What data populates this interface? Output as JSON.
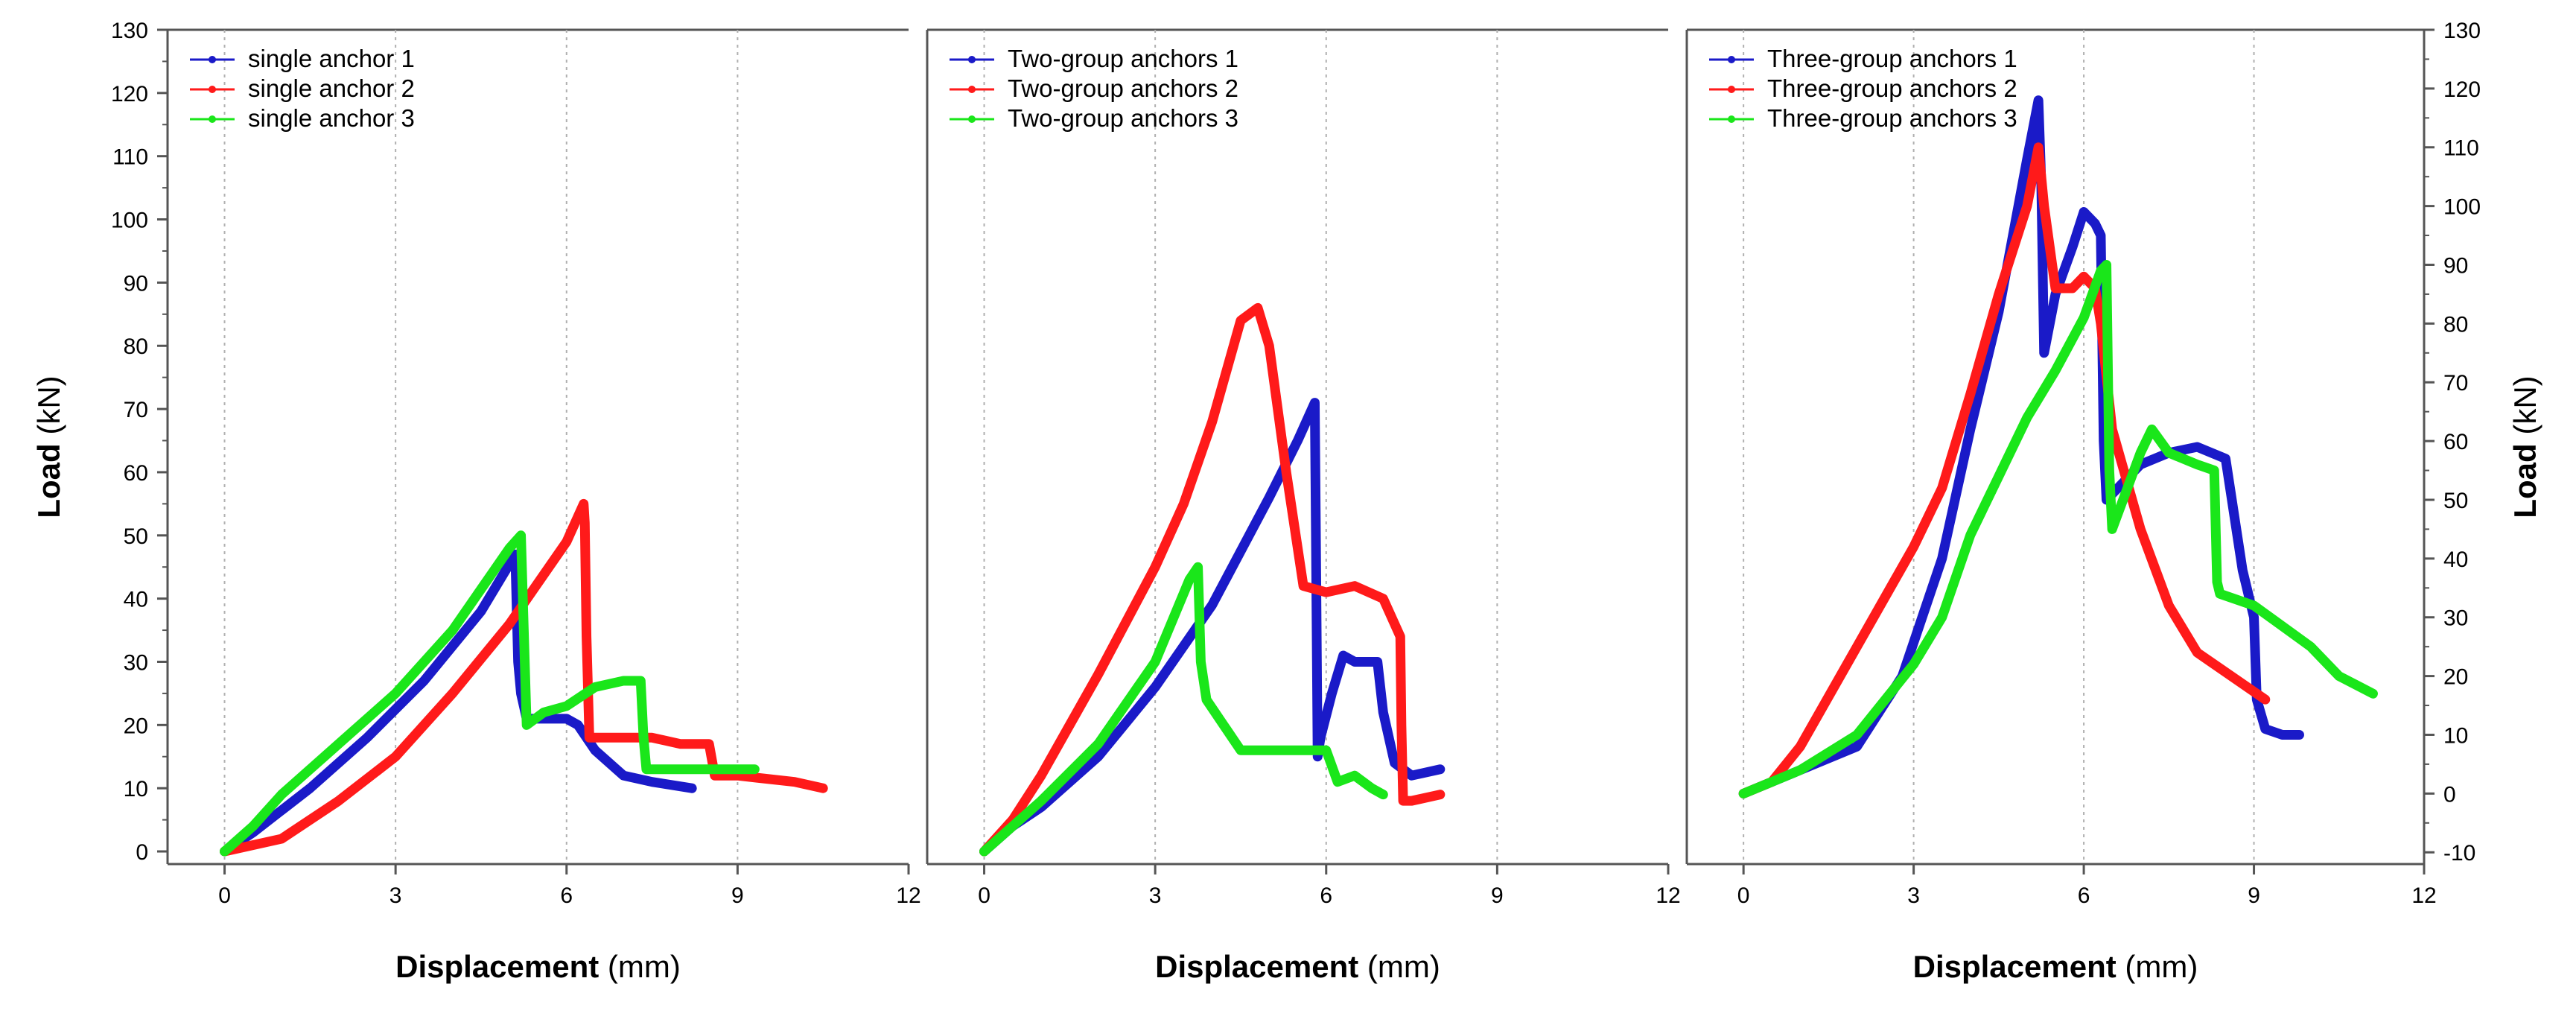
{
  "chart_data": [
    {
      "type": "line",
      "panel": "left",
      "title": "",
      "xlabel_bold": "Displacement",
      "xlabel_unit": "(mm)",
      "ylabel_bold": "Load",
      "ylabel_unit": "(kN)",
      "xlim": [
        -1,
        12
      ],
      "ylim": [
        -2,
        130
      ],
      "xticks": [
        0,
        3,
        6,
        9,
        12
      ],
      "xtick_labels": [
        "0",
        "3",
        "6",
        "9",
        "12"
      ],
      "yticks": [
        0,
        10,
        20,
        30,
        40,
        50,
        60,
        70,
        80,
        90,
        100,
        110,
        120,
        130
      ],
      "ytick_labels": [
        "0",
        "10",
        "20",
        "30",
        "40",
        "50",
        "60",
        "70",
        "80",
        "90",
        "100",
        "110",
        "120",
        "130"
      ],
      "legend_position": "top-left",
      "series": [
        {
          "name": "single anchor 1",
          "color": "#1a1ac8",
          "x": [
            0,
            0.5,
            1.5,
            2.5,
            3.5,
            4.5,
            5.1,
            5.15,
            5.2,
            5.3,
            5.5,
            6.0,
            6.2,
            6.5,
            7.0,
            7.5,
            8.2
          ],
          "y": [
            0,
            3,
            10,
            18,
            27,
            38,
            47,
            30,
            25,
            21,
            21,
            21,
            20,
            16,
            12,
            11,
            10
          ]
        },
        {
          "name": "single anchor 2",
          "color": "#ff1a1a",
          "x": [
            0,
            1,
            2,
            3,
            4,
            5,
            6,
            6.3,
            6.32,
            6.35,
            6.4,
            7,
            7.5,
            8,
            8.5,
            8.6,
            9,
            10,
            10.5
          ],
          "y": [
            0,
            2,
            8,
            15,
            25,
            36,
            49,
            55,
            52,
            34,
            18,
            18,
            18,
            17,
            17,
            12,
            12,
            11,
            10
          ]
        },
        {
          "name": "single anchor 3",
          "color": "#1ae61a",
          "x": [
            0,
            0.5,
            1,
            2,
            3,
            4,
            5,
            5.2,
            5.25,
            5.3,
            5.6,
            6.0,
            6.5,
            7.0,
            7.3,
            7.35,
            7.4,
            8,
            9,
            9.3
          ],
          "y": [
            0,
            4,
            9,
            17,
            25,
            35,
            48,
            50,
            35,
            20,
            22,
            23,
            26,
            27,
            27,
            18,
            13,
            13,
            13,
            13
          ]
        }
      ]
    },
    {
      "type": "line",
      "panel": "middle",
      "title": "",
      "xlabel_bold": "Displacement",
      "xlabel_unit": "(mm)",
      "xlim": [
        -1,
        12
      ],
      "ylim": [
        -2,
        130
      ],
      "xticks": [
        0,
        3,
        6,
        9,
        12
      ],
      "xtick_labels": [
        "0",
        "3",
        "6",
        "9",
        "12"
      ],
      "legend_position": "top-left",
      "series": [
        {
          "name": "Two-group anchors 1",
          "color": "#1a1ac8",
          "x": [
            0,
            0.5,
            1,
            2,
            3,
            4,
            5,
            5.5,
            5.8,
            5.82,
            5.85,
            5.9,
            6.1,
            6.3,
            6.5,
            6.9,
            7.0,
            7.2,
            7.5,
            8.0
          ],
          "y": [
            0,
            4,
            7,
            15,
            26,
            39,
            56,
            65,
            71,
            50,
            15,
            18,
            25,
            31,
            30,
            30,
            22,
            14,
            12,
            13
          ]
        },
        {
          "name": "Two-group anchors 2",
          "color": "#ff1a1a",
          "x": [
            0,
            0.5,
            1,
            1.5,
            2,
            3,
            3.5,
            4,
            4.5,
            4.8,
            5.0,
            5.3,
            5.6,
            6.0,
            6.5,
            7.0,
            7.3,
            7.32,
            7.35,
            7.5,
            8.0
          ],
          "y": [
            0,
            5,
            12,
            20,
            28,
            45,
            55,
            68,
            84,
            86,
            80,
            60,
            42,
            41,
            42,
            40,
            34,
            20,
            8,
            8,
            9
          ]
        },
        {
          "name": "Two-group anchors 3",
          "color": "#1ae61a",
          "x": [
            0,
            0.5,
            1,
            2,
            3,
            3.6,
            3.75,
            3.8,
            3.9,
            4.2,
            4.5,
            5,
            5.5,
            6.0,
            6.2,
            6.5,
            6.8,
            7.0
          ],
          "y": [
            0,
            4,
            8,
            17,
            30,
            43,
            45,
            30,
            24,
            20,
            16,
            16,
            16,
            16,
            11,
            12,
            10,
            9
          ]
        }
      ]
    },
    {
      "type": "line",
      "panel": "right",
      "title": "",
      "xlabel_bold": "Displacement",
      "xlabel_unit": "(mm)",
      "ylabel_right_bold": "Load",
      "ylabel_right_unit": "(kN)",
      "xlim": [
        -1,
        12
      ],
      "ylim": [
        -12,
        130
      ],
      "xticks": [
        0,
        3,
        6,
        9,
        12
      ],
      "xtick_labels": [
        "0",
        "3",
        "6",
        "9",
        "12"
      ],
      "yticks": [
        -10,
        0,
        10,
        20,
        30,
        40,
        50,
        60,
        70,
        80,
        90,
        100,
        110,
        120,
        130
      ],
      "ytick_labels": [
        "-10",
        "0",
        "10",
        "20",
        "30",
        "40",
        "50",
        "60",
        "70",
        "80",
        "90",
        "100",
        "110",
        "120",
        "130"
      ],
      "legend_position": "top-left",
      "series": [
        {
          "name": "Three-group anchors  1",
          "color": "#1a1ac8",
          "x": [
            0,
            0.5,
            1,
            2,
            2.8,
            3.5,
            4.0,
            4.5,
            5.0,
            5.2,
            5.25,
            5.3,
            5.5,
            5.8,
            6.0,
            6.2,
            6.3,
            6.35,
            6.4,
            6.6,
            7,
            7.5,
            8,
            8.5,
            8.8,
            9.0,
            9.05,
            9.2,
            9.5,
            9.8
          ],
          "y": [
            0,
            2,
            4,
            8,
            20,
            40,
            62,
            82,
            108,
            118,
            104,
            75,
            85,
            93,
            99,
            97,
            95,
            60,
            50,
            52,
            56,
            58,
            59,
            57,
            38,
            30,
            16,
            11,
            10,
            10
          ]
        },
        {
          "name": "Three-group anchors  2",
          "color": "#ff1a1a",
          "x": [
            0,
            0.5,
            1,
            2,
            3,
            3.5,
            4,
            4.5,
            5.0,
            5.2,
            5.3,
            5.5,
            5.8,
            6.0,
            6.2,
            6.3,
            6.5,
            7.0,
            7.5,
            8.0,
            9.2
          ],
          "y": [
            0,
            2,
            8,
            25,
            42,
            52,
            68,
            85,
            100,
            110,
            100,
            86,
            86,
            88,
            86,
            80,
            62,
            45,
            32,
            24,
            16
          ]
        },
        {
          "name": "Three-group anchors  3",
          "color": "#1ae61a",
          "x": [
            0,
            0.5,
            1,
            2,
            3,
            3.5,
            4,
            4.5,
            5,
            5.5,
            6.0,
            6.3,
            6.4,
            6.45,
            6.5,
            7.0,
            7.2,
            7.5,
            8.0,
            8.3,
            8.35,
            8.4,
            9,
            10,
            10.5,
            11.1
          ],
          "y": [
            0,
            2,
            4,
            10,
            22,
            30,
            44,
            54,
            64,
            72,
            81,
            89,
            90,
            55,
            45,
            58,
            62,
            58,
            56,
            55,
            36,
            34,
            32,
            25,
            20,
            17
          ]
        }
      ]
    }
  ]
}
